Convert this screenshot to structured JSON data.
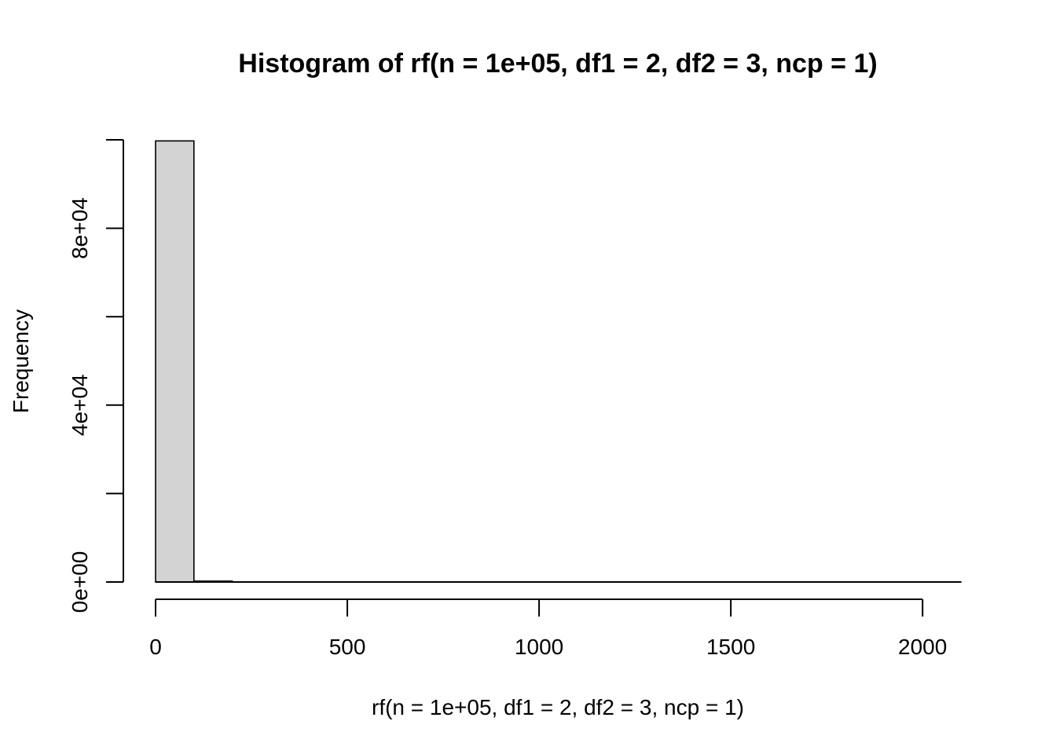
{
  "chart_data": {
    "type": "bar",
    "title": "Histogram of rf(n = 1e+05, df1 = 2, df2 = 3, ncp = 1)",
    "xlabel": "rf(n = 1e+05, df1 = 2, df2 = 3, ncp = 1)",
    "ylabel": "Frequency",
    "bin_width": 100,
    "bins": [
      {
        "x0": 0,
        "x1": 100,
        "count": 99750
      },
      {
        "x0": 100,
        "x1": 200,
        "count": 200
      },
      {
        "x0": 200,
        "x1": 300,
        "count": 25
      },
      {
        "x0": 300,
        "x1": 400,
        "count": 8
      },
      {
        "x0": 400,
        "x1": 500,
        "count": 5
      },
      {
        "x0": 500,
        "x1": 600,
        "count": 3
      },
      {
        "x0": 600,
        "x1": 700,
        "count": 2
      },
      {
        "x0": 700,
        "x1": 800,
        "count": 1
      },
      {
        "x0": 800,
        "x1": 900,
        "count": 1
      },
      {
        "x0": 900,
        "x1": 1000,
        "count": 1
      },
      {
        "x0": 1000,
        "x1": 1100,
        "count": 0
      },
      {
        "x0": 1100,
        "x1": 1200,
        "count": 1
      },
      {
        "x0": 1200,
        "x1": 1300,
        "count": 0
      },
      {
        "x0": 1300,
        "x1": 1400,
        "count": 0
      },
      {
        "x0": 1400,
        "x1": 1500,
        "count": 0
      },
      {
        "x0": 1500,
        "x1": 1600,
        "count": 1
      },
      {
        "x0": 1600,
        "x1": 1700,
        "count": 0
      },
      {
        "x0": 1700,
        "x1": 1800,
        "count": 0
      },
      {
        "x0": 1800,
        "x1": 1900,
        "count": 0
      },
      {
        "x0": 1900,
        "x1": 2000,
        "count": 0
      },
      {
        "x0": 2000,
        "x1": 2100,
        "count": 1
      }
    ],
    "xlim": [
      0,
      2100
    ],
    "ylim": [
      0,
      100000
    ],
    "x_ticks": [
      0,
      500,
      1000,
      1500,
      2000
    ],
    "x_tick_labels": [
      "0",
      "500",
      "1000",
      "1500",
      "2000"
    ],
    "y_ticks": [
      0,
      20000,
      40000,
      60000,
      80000,
      100000
    ],
    "y_tick_labels": [
      {
        "value": 0,
        "label": "0e+00"
      },
      {
        "value": 40000,
        "label": "4e+04"
      },
      {
        "value": 80000,
        "label": "8e+04"
      }
    ],
    "bar_fill": "#d3d3d3",
    "bar_stroke": "#000000",
    "grid": false,
    "legend": "none"
  }
}
